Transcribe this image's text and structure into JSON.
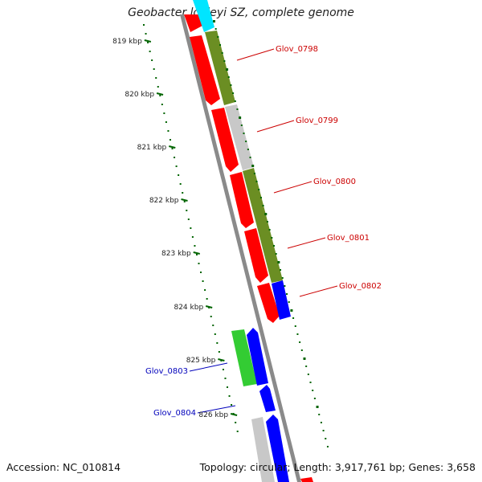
{
  "title": "Geobacter lovleyi SZ, complete genome",
  "accession": "Accession: NC_010814",
  "summary": "Topology: circular; Length: 3,917,761 bp; Genes: 3,658",
  "scale": {
    "ticks": [
      {
        "label": "819 kbp"
      },
      {
        "label": "820 kbp"
      },
      {
        "label": "821 kbp"
      },
      {
        "label": "822 kbp"
      },
      {
        "label": "823 kbp"
      },
      {
        "label": "824 kbp"
      },
      {
        "label": "825 kbp"
      },
      {
        "label": "826 kbp"
      }
    ]
  },
  "colors": {
    "red": "#ff0000",
    "olive": "#6b8e23",
    "gray": "#c8c8c8",
    "blue": "#0000ff",
    "green": "#33cc33",
    "cyan": "#00e5ff",
    "backbone": "#888888",
    "ticks": "#006400",
    "label_red": "#cc0000",
    "label_blue": "#0000bb"
  },
  "gene_labels": [
    {
      "name": "Glov_0798",
      "color": "label_red"
    },
    {
      "name": "Glov_0799",
      "color": "label_red"
    },
    {
      "name": "Glov_0800",
      "color": "label_red"
    },
    {
      "name": "Glov_0801",
      "color": "label_red"
    },
    {
      "name": "Glov_0802",
      "color": "label_red"
    },
    {
      "name": "Glov_0803",
      "color": "label_blue"
    },
    {
      "name": "Glov_0804",
      "color": "label_blue"
    }
  ]
}
